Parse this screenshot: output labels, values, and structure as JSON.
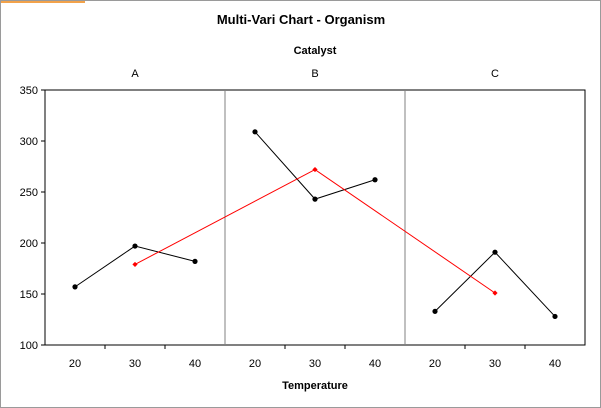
{
  "chart_data": {
    "type": "line",
    "title": "Multi-Vari Chart  - Organism",
    "panel_label": "Catalyst",
    "xlabel": "Temperature",
    "ylabel": "",
    "ylim": [
      100,
      350
    ],
    "yticks": [
      100,
      150,
      200,
      250,
      300,
      350
    ],
    "grid": false,
    "panels": [
      {
        "label": "A",
        "x": [
          "20",
          "30",
          "40"
        ],
        "values": [
          157,
          197,
          182
        ]
      },
      {
        "label": "B",
        "x": [
          "20",
          "30",
          "40"
        ],
        "values": [
          309,
          243,
          262
        ]
      },
      {
        "label": "C",
        "x": [
          "20",
          "30",
          "40"
        ],
        "values": [
          133,
          191,
          128
        ]
      }
    ],
    "means": {
      "x_position": "30",
      "values": [
        179,
        272,
        151
      ],
      "color": "#ff0000"
    },
    "series_color": "#000000"
  }
}
